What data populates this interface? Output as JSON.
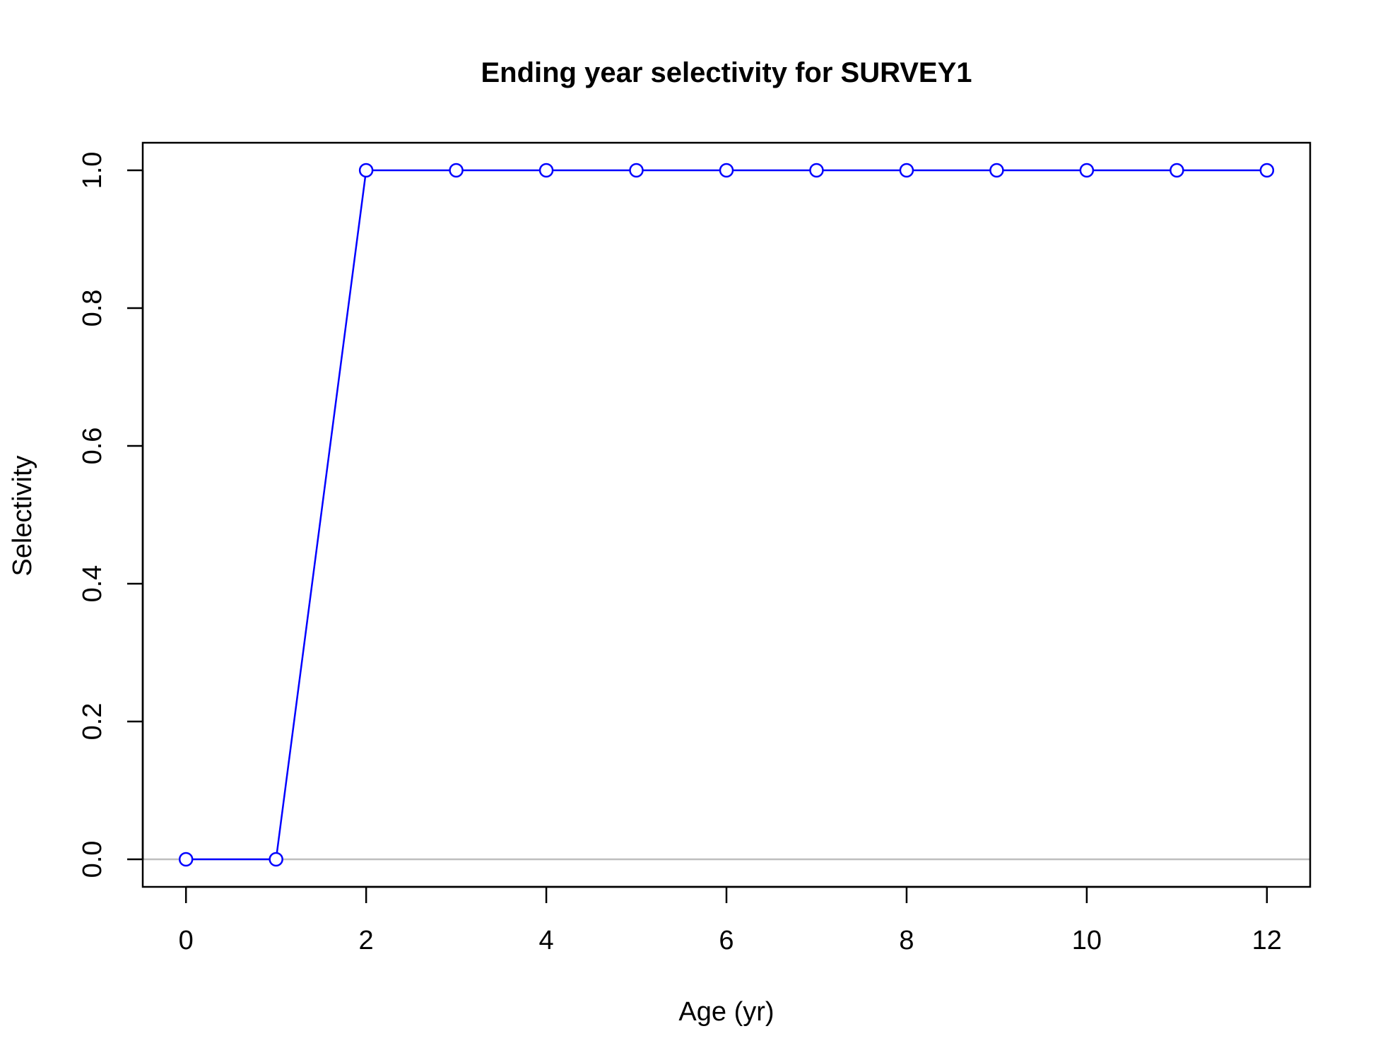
{
  "chart_data": {
    "type": "line",
    "title": "Ending year selectivity for SURVEY1",
    "xlabel": "Age (yr)",
    "ylabel": "Selectivity",
    "xlim": [
      -0.48,
      12.48
    ],
    "ylim": [
      -0.04,
      1.04
    ],
    "x_ticks": [
      0,
      2,
      4,
      6,
      8,
      10,
      12
    ],
    "x_tick_labels": [
      "0",
      "2",
      "4",
      "6",
      "8",
      "10",
      "12"
    ],
    "y_ticks": [
      0.0,
      0.2,
      0.4,
      0.6,
      0.8,
      1.0
    ],
    "y_tick_labels": [
      "0.0",
      "0.2",
      "0.4",
      "0.6",
      "0.8",
      "1.0"
    ],
    "reference_line": {
      "y": 0,
      "color": "#bebebe"
    },
    "grid": false,
    "series": [
      {
        "name": "Selectivity",
        "color": "#0000ff",
        "marker": "open-circle",
        "x": [
          0,
          1,
          2,
          3,
          4,
          5,
          6,
          7,
          8,
          9,
          10,
          11,
          12
        ],
        "values": [
          0,
          0,
          1,
          1,
          1,
          1,
          1,
          1,
          1,
          1,
          1,
          1,
          1
        ]
      }
    ]
  }
}
